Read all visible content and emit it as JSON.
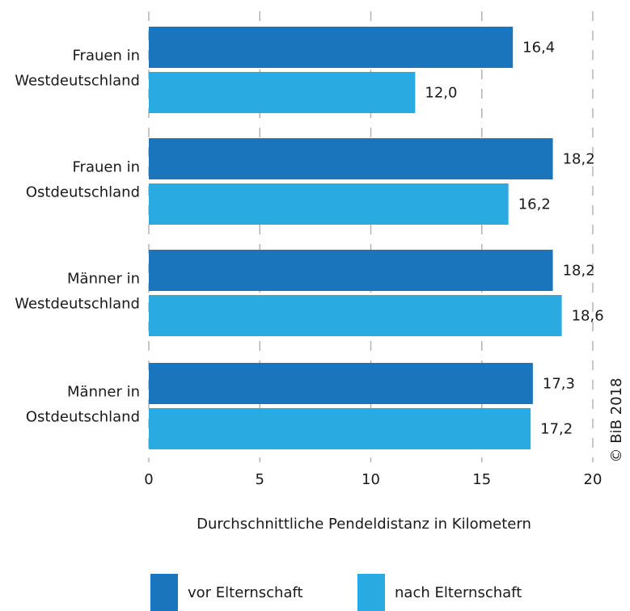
{
  "chart_data": {
    "type": "bar",
    "orientation": "horizontal",
    "categories": [
      [
        "Frauen in",
        "Westdeutschland"
      ],
      [
        "Frauen in",
        "Ostdeutschland"
      ],
      [
        "Männer in",
        "Westdeutschland"
      ],
      [
        "Männer in",
        "Ostdeutschland"
      ]
    ],
    "series": [
      {
        "name": "vor Elternschaft",
        "color": "#1b75bc",
        "values": [
          16.4,
          18.2,
          18.2,
          17.3
        ],
        "labels": [
          "16,4",
          "18,2",
          "18,2",
          "17,3"
        ]
      },
      {
        "name": "nach Elternschaft",
        "color": "#29abe2",
        "values": [
          12.0,
          16.2,
          18.6,
          17.2
        ],
        "labels": [
          "12,0",
          "16,2",
          "18,6",
          "17,2"
        ]
      }
    ],
    "xlim": [
      0,
      20
    ],
    "xticks": [
      0,
      5,
      10,
      15,
      20
    ],
    "xlabel": "Durchschnittliche Pendeldistanz in Kilometern",
    "grid": "vertical dashed",
    "legend_position": "bottom"
  },
  "copyright": "© BiB 2018"
}
